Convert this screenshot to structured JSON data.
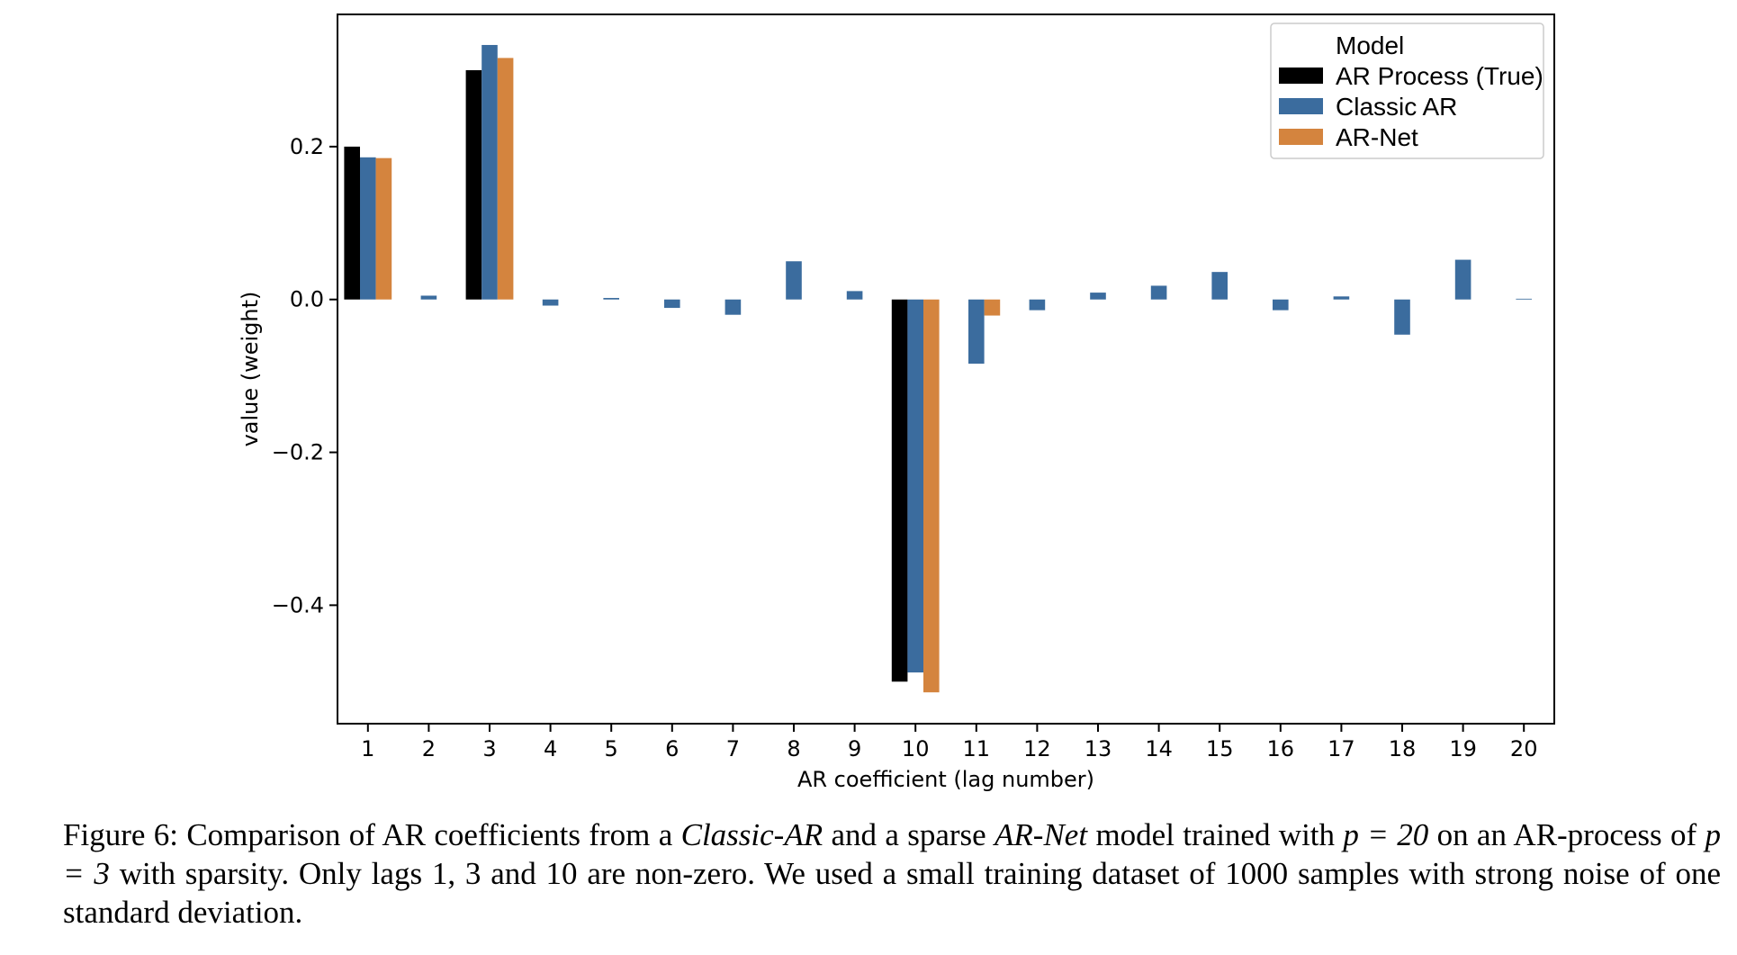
{
  "chart_data": {
    "type": "bar",
    "xlabel": "AR coefficient (lag number)",
    "ylabel": "value (weight)",
    "ylim": [
      -0.555,
      0.373
    ],
    "yticks": [
      0.2,
      0.0,
      -0.2,
      -0.4
    ],
    "ytick_labels": [
      "0.2",
      "0.0",
      "−0.2",
      "−0.4"
    ],
    "categories": [
      "1",
      "2",
      "3",
      "4",
      "5",
      "6",
      "7",
      "8",
      "9",
      "10",
      "11",
      "12",
      "13",
      "14",
      "15",
      "16",
      "17",
      "18",
      "19",
      "20"
    ],
    "legend": {
      "title": "Model",
      "position": "top-right"
    },
    "series": [
      {
        "name": "AR Process (True)",
        "color": "#000000",
        "values": [
          0.2,
          0,
          0.3,
          0,
          0,
          0,
          0,
          0,
          0,
          -0.5,
          0,
          0,
          0,
          0,
          0,
          0,
          0,
          0,
          0,
          0
        ]
      },
      {
        "name": "Classic AR",
        "color": "#3b6c9e",
        "values": [
          0.186,
          0.005,
          0.333,
          -0.008,
          0.002,
          -0.011,
          -0.02,
          0.05,
          0.011,
          -0.488,
          -0.084,
          -0.014,
          0.009,
          0.018,
          0.036,
          -0.014,
          0.004,
          -0.046,
          0.052,
          0.001
        ]
      },
      {
        "name": "AR-Net",
        "color": "#d4843e",
        "values": [
          0.185,
          0,
          0.316,
          0,
          0,
          0,
          0,
          0,
          0,
          -0.514,
          -0.021,
          0,
          0,
          0,
          0,
          0,
          0,
          0,
          0,
          0
        ]
      }
    ]
  },
  "caption": {
    "label": "Figure 6:",
    "t1": "Comparison of AR coefficients from a",
    "m1": "Classic-AR",
    "t2": "and a sparse",
    "m2": "AR-Net",
    "t3": "model trained with",
    "p1": "p = 20",
    "t4": "on an AR-process of",
    "p2": "p = 3",
    "t5": "with sparsity. Only lags 1, 3 and 10 are non-zero. We used a small training dataset of 1000 samples with strong noise of one standard deviation."
  }
}
